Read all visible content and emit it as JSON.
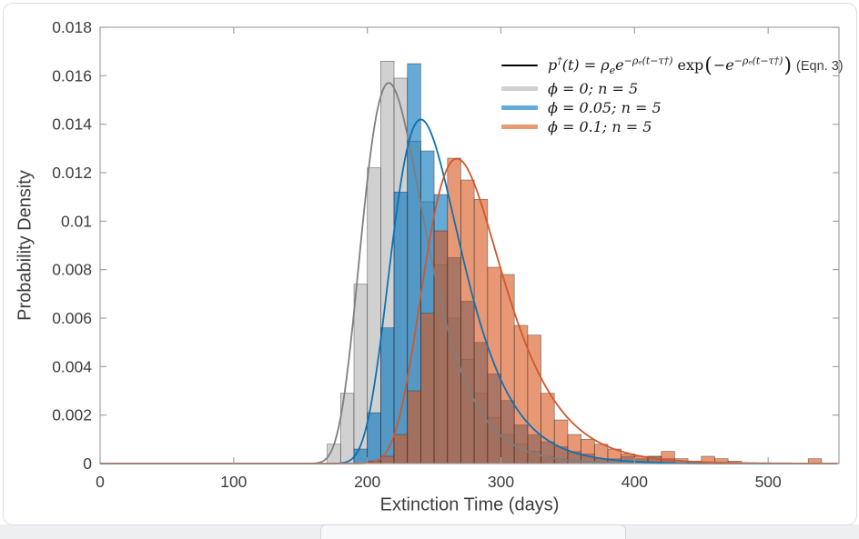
{
  "axes": {
    "xlabel": "Extinction Time (days)",
    "ylabel": "Probability Density"
  },
  "legend": {
    "equation_line_color": "#000000",
    "equation_plain": "p†(t) = ρₑe^(−ρₑ(t−τ†)) exp(−e^(−ρₑ(t−τ†))) (Eqn. 3)",
    "equation_tokens": [
      {
        "text": "p",
        "style": "it"
      },
      {
        "text": "†",
        "style": "sup"
      },
      {
        "text": "(t) = ",
        "style": "it"
      },
      {
        "text": "ρ",
        "style": "it"
      },
      {
        "text": "e",
        "style": "sub"
      },
      {
        "text": "e",
        "style": "it"
      },
      {
        "text": "−ρₑ(t−τ†)",
        "style": "sup"
      },
      {
        "text": " exp",
        "style": "rm"
      },
      {
        "text": "(",
        "style": "bigparen"
      },
      {
        "text": "−e",
        "style": "it"
      },
      {
        "text": "−ρₑ(t−τ†)",
        "style": "sup"
      },
      {
        "text": ")",
        "style": "bigparen"
      },
      {
        "text": " (Eqn. 3)",
        "style": "note"
      }
    ],
    "items": [
      {
        "label": "ϕ = 0; n = 5",
        "swatch_color": "#d0d0d0"
      },
      {
        "label": "ϕ = 0.05; n = 5",
        "swatch_color": "#66aad7"
      },
      {
        "label": "ϕ = 0.1; n = 5",
        "swatch_color": "#e89a73"
      }
    ]
  },
  "chart_data": {
    "type": "histogram-with-fitted-curves",
    "title": "",
    "xlabel": "Extinction Time (days)",
    "ylabel": "Probability Density",
    "xlim": [
      0,
      553
    ],
    "ylim": [
      0,
      0.018
    ],
    "grid": false,
    "legend_position": "top-right-inside",
    "x_ticks": {
      "values": [
        0,
        100,
        200,
        300,
        400,
        500
      ],
      "labels": [
        "0",
        "100",
        "200",
        "300",
        "400",
        "500"
      ]
    },
    "y_ticks": {
      "values": [
        0,
        0.002,
        0.004,
        0.006,
        0.008,
        0.01,
        0.012,
        0.014,
        0.016,
        0.018
      ],
      "labels": [
        "0",
        "0.002",
        "0.004",
        "0.006",
        "0.008",
        "0.01",
        "0.012",
        "0.014",
        "0.016",
        "0.018"
      ]
    },
    "bin_width_days": 10,
    "axis_color": "#9a9a9a",
    "tick_text_color": "#3d3d3d",
    "bar_edge_color": "#262626",
    "series": [
      {
        "name": "phi = 0; n = 5",
        "face_color": "#b3b3b3",
        "fill_alpha": 0.6,
        "curve_color": "#7f7f7f",
        "curve": {
          "rho": 0.0427,
          "tau": 216,
          "peak_day": 216,
          "peak_density": 0.0157
        },
        "bins_start_day": 170,
        "bin_densities": [
          0.0008,
          0.0029,
          0.0074,
          0.0122,
          0.0166,
          0.0159,
          0.0133,
          0.0108,
          0.0082,
          0.006,
          0.0043,
          0.0029,
          0.0019,
          0.0012,
          0.0008,
          0.0005,
          0.0003,
          0.0002
        ]
      },
      {
        "name": "phi = 0.05; n = 5",
        "face_color": "#0072bd",
        "fill_alpha": 0.6,
        "curve_color": "#0b72b3",
        "curve": {
          "rho": 0.0386,
          "tau": 240,
          "peak_day": 240,
          "peak_density": 0.0142
        },
        "bins_start_day": 190,
        "bin_densities": [
          0.0006,
          0.0021,
          0.0056,
          0.0112,
          0.0165,
          0.0129,
          0.0111,
          0.0085,
          0.0067,
          0.005,
          0.0037,
          0.0026,
          0.0016,
          0.0012,
          0.0009,
          0.0007,
          0.0005,
          0.0004,
          0.0002,
          0.0002,
          0.0003,
          0.0002,
          0.0003,
          0.0002
        ]
      },
      {
        "name": "phi = 0.1; n = 5",
        "face_color": "#d95319",
        "fill_alpha": 0.6,
        "curve_color": "#d2572b",
        "curve": {
          "rho": 0.0342,
          "tau": 267,
          "peak_day": 267,
          "peak_density": 0.0126
        },
        "bins_start_day": 200,
        "bin_densities": [
          0.0001,
          0.0003,
          0.0012,
          0.003,
          0.0062,
          0.0096,
          0.0126,
          0.0117,
          0.0109,
          0.0081,
          0.0078,
          0.0057,
          0.0053,
          0.0029,
          0.0018,
          0.0012,
          0.001,
          0.0008,
          0.0006,
          0.0004,
          0.0003,
          0.0003,
          0.0005,
          0.0002,
          0.0001,
          0.0003,
          0.0002,
          0.0001,
          0,
          0,
          0,
          0,
          0,
          0.0002
        ]
      }
    ]
  }
}
